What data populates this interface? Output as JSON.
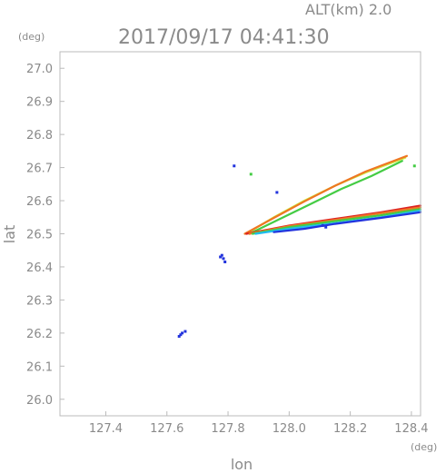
{
  "header": {
    "altitude": "ALT(km) 2.0",
    "unit_y": "(deg)",
    "datetime": "2017/09/17 04:41:30"
  },
  "chart_data": {
    "type": "scatter",
    "title": "2017/09/17 04:41:30",
    "xlabel": "lon",
    "ylabel": "lat",
    "xunit": "(deg)",
    "yunit": "(deg)",
    "xlim": [
      127.25,
      128.43
    ],
    "ylim": [
      25.95,
      27.05
    ],
    "xticks": [
      "127.4",
      "127.6",
      "127.8",
      "128.0",
      "128.2",
      "128.4"
    ],
    "xtick_values": [
      127.4,
      127.6,
      127.8,
      128.0,
      128.2,
      128.4
    ],
    "yticks": [
      "26.0",
      "26.1",
      "26.2",
      "26.3",
      "26.4",
      "26.5",
      "26.6",
      "26.7",
      "26.8",
      "26.9",
      "27.0"
    ],
    "ytick_values": [
      26.0,
      26.1,
      26.2,
      26.3,
      26.4,
      26.5,
      26.6,
      26.7,
      26.8,
      26.9,
      27.0
    ],
    "grid": false,
    "colors": {
      "blue": "#2233dd",
      "green": "#44cc44",
      "yellowgreen": "#ccee44",
      "cyan": "#22bbee",
      "orange": "#ee7722",
      "red": "#dd2222"
    },
    "points": [
      {
        "x": 127.64,
        "y": 26.19,
        "color": "blue"
      },
      {
        "x": 127.65,
        "y": 26.2,
        "color": "blue"
      },
      {
        "x": 127.66,
        "y": 26.205,
        "color": "blue"
      },
      {
        "x": 127.645,
        "y": 26.195,
        "color": "blue"
      },
      {
        "x": 127.775,
        "y": 26.43,
        "color": "blue"
      },
      {
        "x": 127.785,
        "y": 26.425,
        "color": "blue"
      },
      {
        "x": 127.79,
        "y": 26.415,
        "color": "blue"
      },
      {
        "x": 127.78,
        "y": 26.435,
        "color": "blue"
      },
      {
        "x": 127.82,
        "y": 26.705,
        "color": "blue"
      },
      {
        "x": 127.875,
        "y": 26.68,
        "color": "green"
      },
      {
        "x": 127.96,
        "y": 26.625,
        "color": "blue"
      },
      {
        "x": 128.12,
        "y": 26.52,
        "color": "blue"
      },
      {
        "x": 128.11,
        "y": 26.525,
        "color": "blue"
      },
      {
        "x": 128.41,
        "y": 26.705,
        "color": "green"
      }
    ],
    "series": [
      {
        "color": "yellowgreen",
        "x": [
          127.86,
          127.95,
          128.05,
          128.15,
          128.25,
          128.38
        ],
        "y": [
          26.5,
          26.55,
          26.6,
          26.645,
          26.685,
          26.73
        ]
      },
      {
        "color": "green",
        "x": [
          127.87,
          127.97,
          128.07,
          128.17,
          128.27,
          128.37
        ],
        "y": [
          26.5,
          26.545,
          26.59,
          26.635,
          26.675,
          26.72
        ]
      },
      {
        "color": "orange",
        "x": [
          127.855,
          127.95,
          128.05,
          128.15,
          128.25,
          128.385
        ],
        "y": [
          26.5,
          26.548,
          26.598,
          26.645,
          26.688,
          26.735
        ]
      },
      {
        "color": "red",
        "x": [
          127.86,
          128.0,
          128.15,
          128.3,
          128.43
        ],
        "y": [
          26.5,
          26.525,
          26.545,
          26.565,
          26.585
        ]
      },
      {
        "color": "orange",
        "x": [
          127.87,
          128.0,
          128.15,
          128.3,
          128.43
        ],
        "y": [
          26.5,
          26.523,
          26.542,
          26.562,
          26.58
        ]
      },
      {
        "color": "green",
        "x": [
          127.88,
          128.0,
          128.15,
          128.3,
          128.43
        ],
        "y": [
          26.5,
          26.52,
          26.538,
          26.556,
          26.575
        ]
      },
      {
        "color": "cyan",
        "x": [
          127.89,
          128.0,
          128.15,
          128.3,
          128.43
        ],
        "y": [
          26.5,
          26.515,
          26.532,
          26.55,
          26.57
        ]
      },
      {
        "color": "blue",
        "x": [
          127.95,
          128.05,
          128.15,
          128.3,
          128.43
        ],
        "y": [
          26.505,
          26.515,
          26.53,
          26.548,
          26.565
        ]
      }
    ]
  }
}
